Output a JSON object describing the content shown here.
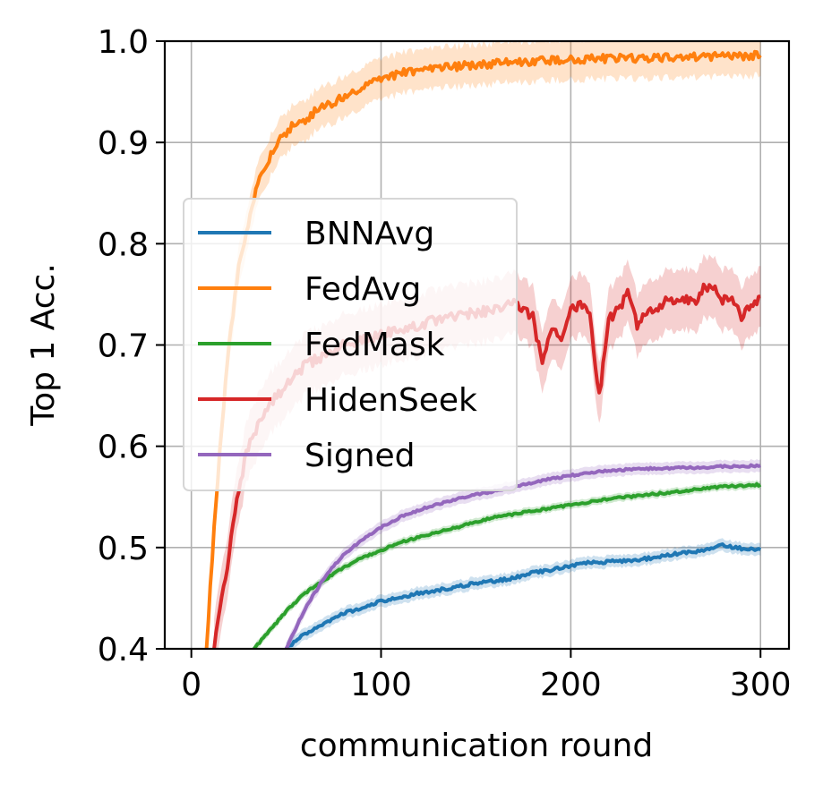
{
  "chart_data": {
    "type": "line",
    "xlabel": "communication round",
    "ylabel": "Top 1 Acc.",
    "xlim": [
      -14,
      315
    ],
    "ylim": [
      0.4,
      1.0
    ],
    "xticks": [
      0,
      100,
      200,
      300
    ],
    "xtick_labels": [
      "0",
      "100",
      "200",
      "300"
    ],
    "yticks": [
      0.4,
      0.5,
      0.6,
      0.7,
      0.8,
      0.9,
      1.0
    ],
    "ytick_labels": [
      "0.4",
      "0.5",
      "0.6",
      "0.7",
      "0.8",
      "0.9",
      "1.0"
    ],
    "grid": true,
    "legend_position": "center-left",
    "series": [
      {
        "name": "BNNAvg",
        "color": "#1f77b4",
        "x": [
          50,
          60,
          70,
          80,
          90,
          100,
          110,
          120,
          130,
          140,
          150,
          160,
          170,
          180,
          190,
          200,
          210,
          220,
          230,
          240,
          250,
          260,
          270,
          280,
          290,
          300
        ],
        "y": [
          0.4,
          0.415,
          0.425,
          0.435,
          0.44,
          0.447,
          0.45,
          0.455,
          0.458,
          0.461,
          0.465,
          0.467,
          0.47,
          0.475,
          0.478,
          0.482,
          0.485,
          0.486,
          0.487,
          0.489,
          0.492,
          0.495,
          0.497,
          0.502,
          0.499,
          0.498
        ]
      },
      {
        "name": "FedAvg",
        "color": "#ff7f0e",
        "x": [
          8,
          12,
          16,
          20,
          25,
          30,
          35,
          40,
          45,
          50,
          55,
          60,
          65,
          70,
          80,
          90,
          100,
          110,
          120,
          140,
          160,
          180,
          200,
          220,
          240,
          260,
          280,
          300
        ],
        "y": [
          0.4,
          0.52,
          0.62,
          0.7,
          0.78,
          0.82,
          0.86,
          0.88,
          0.9,
          0.91,
          0.92,
          0.92,
          0.93,
          0.935,
          0.945,
          0.955,
          0.962,
          0.968,
          0.972,
          0.975,
          0.978,
          0.98,
          0.982,
          0.983,
          0.983,
          0.984,
          0.985,
          0.986
        ]
      },
      {
        "name": "FedMask",
        "color": "#2ca02c",
        "x": [
          33,
          40,
          50,
          60,
          70,
          80,
          90,
          100,
          110,
          120,
          140,
          160,
          180,
          200,
          220,
          240,
          260,
          280,
          300
        ],
        "y": [
          0.4,
          0.415,
          0.437,
          0.455,
          0.468,
          0.48,
          0.49,
          0.497,
          0.505,
          0.51,
          0.52,
          0.53,
          0.536,
          0.542,
          0.548,
          0.552,
          0.556,
          0.56,
          0.562
        ]
      },
      {
        "name": "HidenSeek",
        "color": "#d62728",
        "x": [
          12,
          18,
          24,
          30,
          40,
          50,
          60,
          70,
          80,
          90,
          100,
          110,
          120,
          130,
          140,
          150,
          160,
          170,
          175,
          180,
          185,
          190,
          195,
          200,
          205,
          210,
          215,
          220,
          225,
          230,
          235,
          240,
          245,
          250,
          255,
          260,
          265,
          270,
          275,
          280,
          285,
          290,
          295,
          300
        ],
        "y": [
          0.4,
          0.47,
          0.55,
          0.6,
          0.64,
          0.66,
          0.68,
          0.69,
          0.7,
          0.705,
          0.71,
          0.715,
          0.72,
          0.725,
          0.73,
          0.732,
          0.735,
          0.74,
          0.735,
          0.728,
          0.68,
          0.72,
          0.7,
          0.735,
          0.74,
          0.73,
          0.65,
          0.725,
          0.735,
          0.75,
          0.72,
          0.73,
          0.735,
          0.745,
          0.74,
          0.745,
          0.74,
          0.755,
          0.76,
          0.745,
          0.75,
          0.725,
          0.74,
          0.748
        ]
      },
      {
        "name": "Signed",
        "color": "#9467bd",
        "x": [
          50,
          55,
          60,
          65,
          70,
          75,
          80,
          90,
          100,
          110,
          120,
          130,
          140,
          150,
          160,
          170,
          180,
          190,
          200,
          210,
          220,
          230,
          240,
          250,
          260,
          270,
          280,
          290,
          300
        ],
        "y": [
          0.4,
          0.42,
          0.44,
          0.455,
          0.47,
          0.482,
          0.492,
          0.508,
          0.52,
          0.53,
          0.537,
          0.543,
          0.548,
          0.552,
          0.556,
          0.56,
          0.564,
          0.568,
          0.571,
          0.574,
          0.576,
          0.577,
          0.578,
          0.578,
          0.579,
          0.579,
          0.58,
          0.58,
          0.581
        ]
      }
    ]
  }
}
